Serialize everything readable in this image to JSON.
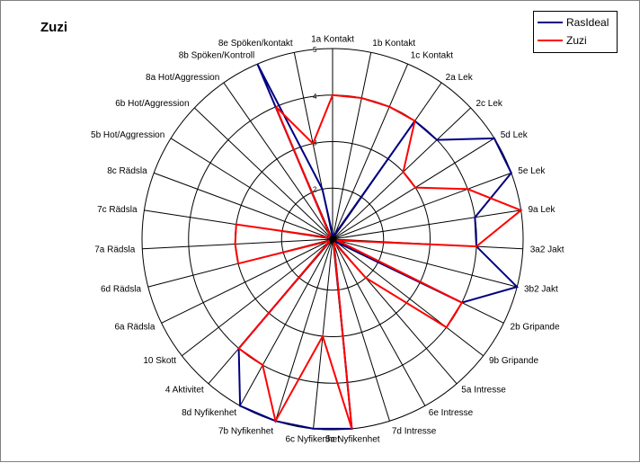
{
  "chart_data": {
    "type": "radar",
    "title": "Zuzi",
    "categories": [
      "1a Kontakt",
      "1b Kontakt",
      "1c Kontakt",
      "2a Lek",
      "2c Lek",
      "5d Lek",
      "5e Lek",
      "9a Lek",
      "3a2 Jakt",
      "3b2 Jakt",
      "2b Gripande",
      "9b Gripande",
      "5a Intresse",
      "6e Intresse",
      "7d Intresse",
      "5c Nyfikenhet",
      "6c Nyfikenhet",
      "7b Nyfikenhet",
      "8d Nyfikenhet",
      "4 Aktivitet",
      "10 Skott",
      "6a Rädsla",
      "6d Rädsla",
      "7a Rädsla",
      "7c Rädsla",
      "8c Rädsla",
      "5b Hot/Aggression",
      "6b Hot/Aggression",
      "8a Hot/Aggression",
      "8b Spöken/Kontroll",
      "8e Spöken/kontakt"
    ],
    "rlim": [
      1,
      5
    ],
    "ticks": [
      "1",
      "2",
      "3",
      "4",
      "5"
    ],
    "legend_position": "top-right",
    "series": [
      {
        "name": "RasIdeal",
        "color": "#000080",
        "values": [
          1,
          1,
          1,
          4,
          4,
          5,
          5,
          4,
          4,
          5,
          4,
          1,
          1,
          1,
          1,
          5,
          5,
          5,
          5,
          4,
          1,
          1,
          1,
          1,
          1,
          1,
          1,
          1,
          1,
          5,
          2
        ]
      },
      {
        "name": "Zuzi",
        "color": "#ff0000",
        "values": [
          4,
          4,
          4,
          4,
          3,
          3,
          4,
          5,
          4,
          1,
          4,
          4,
          2,
          1,
          1,
          5,
          3,
          5,
          4,
          4,
          1,
          1,
          3,
          3,
          3,
          1,
          1,
          1,
          1,
          4,
          3
        ]
      }
    ]
  }
}
